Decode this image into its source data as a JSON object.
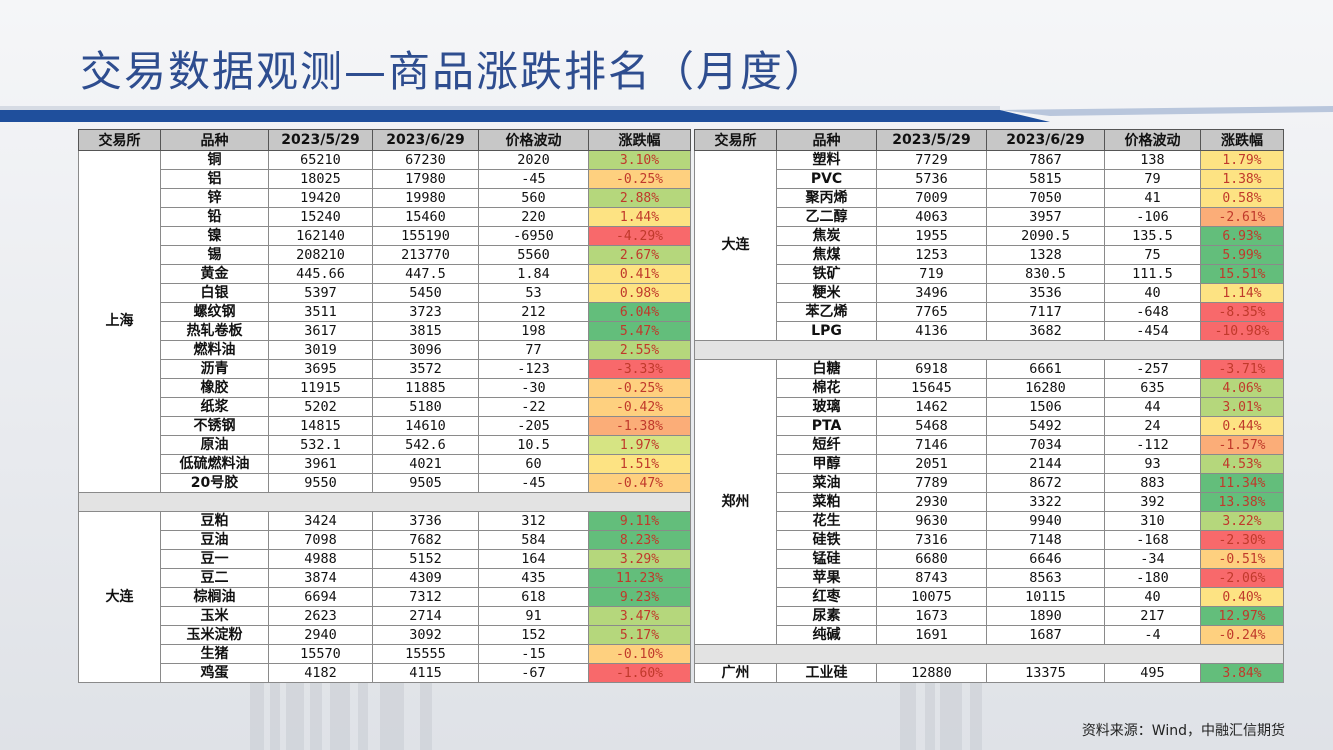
{
  "title": "交易数据观测—商品涨跌排名（月度）",
  "source": "资料来源：Wind，中融汇信期货",
  "columns": [
    "交易所",
    "品种",
    "2023/5/29",
    "2023/6/29",
    "价格波动",
    "涨跌幅"
  ],
  "colors": {
    "up_strong": "#63be7b",
    "up_mid": "#c6df7f",
    "flat": "#ffeb84",
    "down_mid": "#fbad78",
    "down_strong": "#f8696b",
    "title": "#2e4d8f"
  },
  "left_groups": [
    {
      "exchange": "上海",
      "rows": [
        {
          "name": "铜",
          "p1": "65210",
          "p2": "67230",
          "chg": "2020",
          "pct": "3.10%",
          "level": "up_mid"
        },
        {
          "name": "铝",
          "p1": "18025",
          "p2": "17980",
          "chg": "-45",
          "pct": "-0.25%",
          "level": "down_weak"
        },
        {
          "name": "锌",
          "p1": "19420",
          "p2": "19980",
          "chg": "560",
          "pct": "2.88%",
          "level": "up_mid"
        },
        {
          "name": "铅",
          "p1": "15240",
          "p2": "15460",
          "chg": "220",
          "pct": "1.44%",
          "level": "flat"
        },
        {
          "name": "镍",
          "p1": "162140",
          "p2": "155190",
          "chg": "-6950",
          "pct": "-4.29%",
          "level": "down_strong"
        },
        {
          "name": "锡",
          "p1": "208210",
          "p2": "213770",
          "chg": "5560",
          "pct": "2.67%",
          "level": "up_mid"
        },
        {
          "name": "黄金",
          "p1": "445.66",
          "p2": "447.5",
          "chg": "1.84",
          "pct": "0.41%",
          "level": "flat"
        },
        {
          "name": "白银",
          "p1": "5397",
          "p2": "5450",
          "chg": "53",
          "pct": "0.98%",
          "level": "flat"
        },
        {
          "name": "螺纹钢",
          "p1": "3511",
          "p2": "3723",
          "chg": "212",
          "pct": "6.04%",
          "level": "up_strong"
        },
        {
          "name": "热轧卷板",
          "p1": "3617",
          "p2": "3815",
          "chg": "198",
          "pct": "5.47%",
          "level": "up_strong"
        },
        {
          "name": "燃料油",
          "p1": "3019",
          "p2": "3096",
          "chg": "77",
          "pct": "2.55%",
          "level": "up_mid"
        },
        {
          "name": "沥青",
          "p1": "3695",
          "p2": "3572",
          "chg": "-123",
          "pct": "-3.33%",
          "level": "down_strong"
        },
        {
          "name": "橡胶",
          "p1": "11915",
          "p2": "11885",
          "chg": "-30",
          "pct": "-0.25%",
          "level": "down_weak"
        },
        {
          "name": "纸浆",
          "p1": "5202",
          "p2": "5180",
          "chg": "-22",
          "pct": "-0.42%",
          "level": "down_weak"
        },
        {
          "name": "不锈钢",
          "p1": "14815",
          "p2": "14610",
          "chg": "-205",
          "pct": "-1.38%",
          "level": "down_mid"
        },
        {
          "name": "原油",
          "p1": "532.1",
          "p2": "542.6",
          "chg": "10.5",
          "pct": "1.97%",
          "level": "up_weak"
        },
        {
          "name": "低硫燃料油",
          "p1": "3961",
          "p2": "4021",
          "chg": "60",
          "pct": "1.51%",
          "level": "flat"
        },
        {
          "name": "20号胶",
          "p1": "9550",
          "p2": "9505",
          "chg": "-45",
          "pct": "-0.47%",
          "level": "down_weak"
        }
      ]
    },
    {
      "exchange": "大连",
      "rows": [
        {
          "name": "豆粕",
          "p1": "3424",
          "p2": "3736",
          "chg": "312",
          "pct": "9.11%",
          "level": "up_strong"
        },
        {
          "name": "豆油",
          "p1": "7098",
          "p2": "7682",
          "chg": "584",
          "pct": "8.23%",
          "level": "up_strong"
        },
        {
          "name": "豆一",
          "p1": "4988",
          "p2": "5152",
          "chg": "164",
          "pct": "3.29%",
          "level": "up_mid"
        },
        {
          "name": "豆二",
          "p1": "3874",
          "p2": "4309",
          "chg": "435",
          "pct": "11.23%",
          "level": "up_strong"
        },
        {
          "name": "棕榈油",
          "p1": "6694",
          "p2": "7312",
          "chg": "618",
          "pct": "9.23%",
          "level": "up_strong"
        },
        {
          "name": "玉米",
          "p1": "2623",
          "p2": "2714",
          "chg": "91",
          "pct": "3.47%",
          "level": "up_mid"
        },
        {
          "name": "玉米淀粉",
          "p1": "2940",
          "p2": "3092",
          "chg": "152",
          "pct": "5.17%",
          "level": "up_mid"
        },
        {
          "name": "生猪",
          "p1": "15570",
          "p2": "15555",
          "chg": "-15",
          "pct": "-0.10%",
          "level": "down_weak"
        },
        {
          "name": "鸡蛋",
          "p1": "4182",
          "p2": "4115",
          "chg": "-67",
          "pct": "-1.60%",
          "level": "down_strong"
        }
      ]
    }
  ],
  "right_groups": [
    {
      "exchange": "大连",
      "rows": [
        {
          "name": "塑料",
          "p1": "7729",
          "p2": "7867",
          "chg": "138",
          "pct": "1.79%",
          "level": "flat"
        },
        {
          "name": "PVC",
          "p1": "5736",
          "p2": "5815",
          "chg": "79",
          "pct": "1.38%",
          "level": "flat"
        },
        {
          "name": "聚丙烯",
          "p1": "7009",
          "p2": "7050",
          "chg": "41",
          "pct": "0.58%",
          "level": "flat"
        },
        {
          "name": "乙二醇",
          "p1": "4063",
          "p2": "3957",
          "chg": "-106",
          "pct": "-2.61%",
          "level": "down_mid"
        },
        {
          "name": "焦炭",
          "p1": "1955",
          "p2": "2090.5",
          "chg": "135.5",
          "pct": "6.93%",
          "level": "up_strong"
        },
        {
          "name": "焦煤",
          "p1": "1253",
          "p2": "1328",
          "chg": "75",
          "pct": "5.99%",
          "level": "up_strong"
        },
        {
          "name": "铁矿",
          "p1": "719",
          "p2": "830.5",
          "chg": "111.5",
          "pct": "15.51%",
          "level": "up_strong"
        },
        {
          "name": "粳米",
          "p1": "3496",
          "p2": "3536",
          "chg": "40",
          "pct": "1.14%",
          "level": "flat"
        },
        {
          "name": "苯乙烯",
          "p1": "7765",
          "p2": "7117",
          "chg": "-648",
          "pct": "-8.35%",
          "level": "down_strong"
        },
        {
          "name": "LPG",
          "p1": "4136",
          "p2": "3682",
          "chg": "-454",
          "pct": "-10.98%",
          "level": "down_strong"
        }
      ]
    },
    {
      "exchange": "郑州",
      "rows": [
        {
          "name": "白糖",
          "p1": "6918",
          "p2": "6661",
          "chg": "-257",
          "pct": "-3.71%",
          "level": "down_strong"
        },
        {
          "name": "棉花",
          "p1": "15645",
          "p2": "16280",
          "chg": "635",
          "pct": "4.06%",
          "level": "up_mid"
        },
        {
          "name": "玻璃",
          "p1": "1462",
          "p2": "1506",
          "chg": "44",
          "pct": "3.01%",
          "level": "up_mid"
        },
        {
          "name": "PTA",
          "p1": "5468",
          "p2": "5492",
          "chg": "24",
          "pct": "0.44%",
          "level": "flat"
        },
        {
          "name": "短纤",
          "p1": "7146",
          "p2": "7034",
          "chg": "-112",
          "pct": "-1.57%",
          "level": "down_mid"
        },
        {
          "name": "甲醇",
          "p1": "2051",
          "p2": "2144",
          "chg": "93",
          "pct": "4.53%",
          "level": "up_mid"
        },
        {
          "name": "菜油",
          "p1": "7789",
          "p2": "8672",
          "chg": "883",
          "pct": "11.34%",
          "level": "up_strong"
        },
        {
          "name": "菜粕",
          "p1": "2930",
          "p2": "3322",
          "chg": "392",
          "pct": "13.38%",
          "level": "up_strong"
        },
        {
          "name": "花生",
          "p1": "9630",
          "p2": "9940",
          "chg": "310",
          "pct": "3.22%",
          "level": "up_mid"
        },
        {
          "name": "硅铁",
          "p1": "7316",
          "p2": "7148",
          "chg": "-168",
          "pct": "-2.30%",
          "level": "down_strong"
        },
        {
          "name": "锰硅",
          "p1": "6680",
          "p2": "6646",
          "chg": "-34",
          "pct": "-0.51%",
          "level": "down_weak"
        },
        {
          "name": "苹果",
          "p1": "8743",
          "p2": "8563",
          "chg": "-180",
          "pct": "-2.06%",
          "level": "down_strong"
        },
        {
          "name": "红枣",
          "p1": "10075",
          "p2": "10115",
          "chg": "40",
          "pct": "0.40%",
          "level": "flat"
        },
        {
          "name": "尿素",
          "p1": "1673",
          "p2": "1890",
          "chg": "217",
          "pct": "12.97%",
          "level": "up_strong"
        },
        {
          "name": "纯碱",
          "p1": "1691",
          "p2": "1687",
          "chg": "-4",
          "pct": "-0.24%",
          "level": "down_weak"
        }
      ]
    },
    {
      "exchange": "广州",
      "rows": [
        {
          "name": "工业硅",
          "p1": "12880",
          "p2": "13375",
          "chg": "495",
          "pct": "3.84%",
          "level": "up_strong"
        }
      ]
    }
  ]
}
